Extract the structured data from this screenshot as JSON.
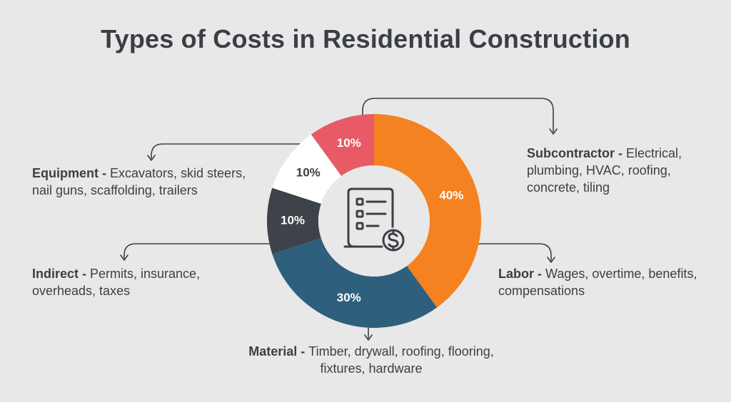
{
  "page": {
    "title": "Types of Costs in Residential Construction"
  },
  "chart_data": {
    "type": "pie",
    "title": "Types of Costs in Residential Construction",
    "categories": [
      {
        "name": "Labor",
        "value": 40,
        "label": "40%",
        "description": "Wages, overtime, benefits, compensations",
        "color": "#f58220",
        "label_color": "#ffffff"
      },
      {
        "name": "Material",
        "value": 30,
        "label": "30%",
        "description": "Timber, drywall, roofing, flooring, fixtures, hardware",
        "color": "#2e5f7c",
        "label_color": "#ffffff"
      },
      {
        "name": "Indirect",
        "value": 10,
        "label": "10%",
        "description": "Permits, insurance, overheads, taxes",
        "color": "#3e4249",
        "label_color": "#ffffff"
      },
      {
        "name": "Equipment",
        "value": 10,
        "label": "10%",
        "description": "Excavators, skid steers, nail guns, scaffolding, trailers",
        "color": "#ffffff",
        "label_color": "#3b3f45"
      },
      {
        "name": "Subcontractor",
        "value": 10,
        "label": "10%",
        "description": "Electrical, plumbing, HVAC, roofing, concrete, tiling",
        "color": "#e85a66",
        "label_color": "#ffffff"
      }
    ],
    "center_icon": "invoice-dollar-icon",
    "separator": " - "
  }
}
